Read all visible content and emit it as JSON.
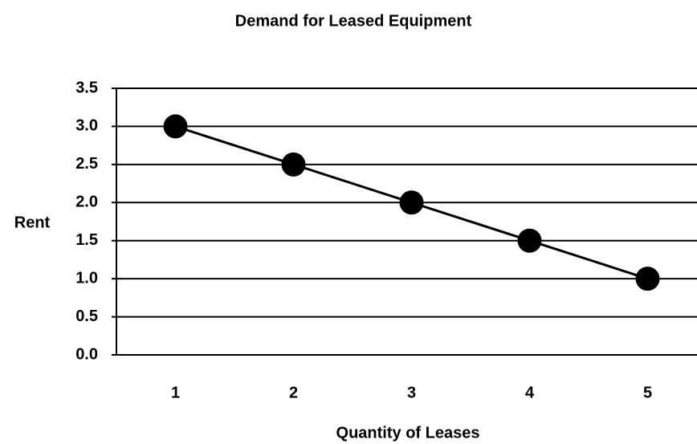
{
  "chart_data": {
    "type": "line",
    "title": "Demand for Leased Equipment",
    "x_label": "Quantity of Leases",
    "y_label": "Rent",
    "categories": [
      "1",
      "2",
      "3",
      "4",
      "5"
    ],
    "series": [
      {
        "name": "Rent",
        "color": "#000000",
        "values": [
          3,
          2.5,
          2,
          1.5,
          1
        ]
      }
    ],
    "ylim": [
      0,
      3.5
    ],
    "yticks": [
      {
        "value": 0,
        "label": "0.0"
      },
      0.5,
      {
        "value": 1,
        "label": "1.0"
      },
      1.5,
      {
        "value": 2,
        "label": "2.0"
      },
      2.5,
      {
        "value": 3,
        "label": "3.0"
      },
      3.5
    ],
    "grid": true,
    "legend": false
  }
}
